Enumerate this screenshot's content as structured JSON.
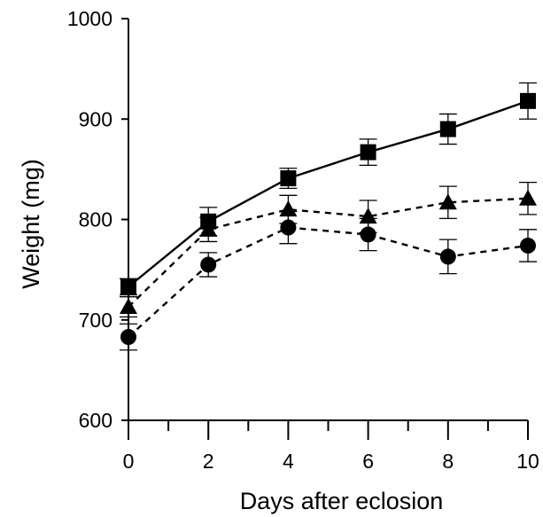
{
  "chart_data": {
    "type": "line",
    "title": "",
    "xlabel": "Days after eclosion",
    "ylabel": "Weight (mg)",
    "xlim": [
      0,
      10
    ],
    "ylim": [
      600,
      1000
    ],
    "x_ticks": [
      0,
      2,
      4,
      6,
      8,
      10
    ],
    "x_minor_ticks": [
      1,
      3,
      5,
      7,
      9
    ],
    "y_ticks": [
      600,
      700,
      800,
      900,
      1000
    ],
    "x_tick_labels": [
      "0",
      "2",
      "4",
      "6",
      "8",
      "10"
    ],
    "y_tick_labels": [
      "600",
      "700",
      "800",
      "900",
      "1000"
    ],
    "grid": false,
    "legend": "none",
    "series": [
      {
        "marker": "square",
        "line": "solid",
        "x": [
          0,
          2,
          4,
          6,
          8,
          10
        ],
        "y": [
          733,
          798,
          841,
          867,
          890,
          918
        ],
        "error": [
          8,
          14,
          10,
          13,
          15,
          18
        ]
      },
      {
        "marker": "triangle",
        "line": "dashed",
        "x": [
          0,
          2,
          4,
          6,
          8,
          10
        ],
        "y": [
          713,
          790,
          810,
          803,
          817,
          821
        ],
        "error": [
          10,
          12,
          14,
          16,
          16,
          16
        ]
      },
      {
        "marker": "circle",
        "line": "dashed",
        "x": [
          0,
          2,
          4,
          6,
          8,
          10
        ],
        "y": [
          683,
          755,
          792,
          785,
          763,
          774
        ],
        "error": [
          13,
          12,
          16,
          16,
          17,
          16
        ]
      }
    ]
  }
}
